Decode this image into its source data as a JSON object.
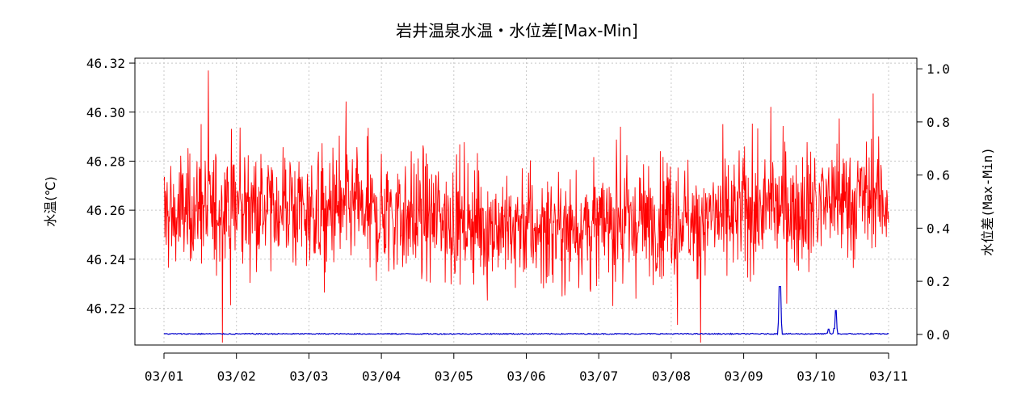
{
  "chart_data": {
    "type": "line",
    "title": "岩井温泉水温・水位差[Max-Min]",
    "x_tick_labels": [
      "03/01",
      "03/02",
      "03/03",
      "03/04",
      "03/05",
      "03/06",
      "03/07",
      "03/08",
      "03/09",
      "03/10",
      "03/11"
    ],
    "y_left": {
      "label": "水温(℃)",
      "ticks": [
        "46.22",
        "46.24",
        "46.26",
        "46.28",
        "46.30",
        "46.32"
      ],
      "range": [
        46.205,
        46.322
      ]
    },
    "y_right": {
      "label": "水位差(Max-Min)",
      "ticks": [
        "0.0",
        "0.2",
        "0.4",
        "0.6",
        "0.8",
        "1.0"
      ],
      "range": [
        -0.04,
        1.04
      ]
    },
    "grid": true,
    "series": [
      {
        "name": "水温",
        "axis": "left",
        "color": "#ff0000",
        "x_range_days": [
          0,
          10
        ],
        "typical_band": [
          46.235,
          46.285
        ],
        "extremes": [
          46.206,
          46.317
        ],
        "approx_daily_mean": [
          46.258,
          46.262,
          46.26,
          46.258,
          46.256,
          46.252,
          46.254,
          46.256,
          46.258,
          46.262,
          46.266
        ]
      },
      {
        "name": "水位差",
        "axis": "right",
        "color": "#0000cc",
        "x_range_days": [
          0,
          10
        ],
        "baseline": 0.0,
        "spikes": [
          {
            "x_day": 8.5,
            "value": 0.18
          },
          {
            "x_day": 9.17,
            "value": 0.02
          },
          {
            "x_day": 9.27,
            "value": 0.09
          }
        ]
      }
    ]
  }
}
